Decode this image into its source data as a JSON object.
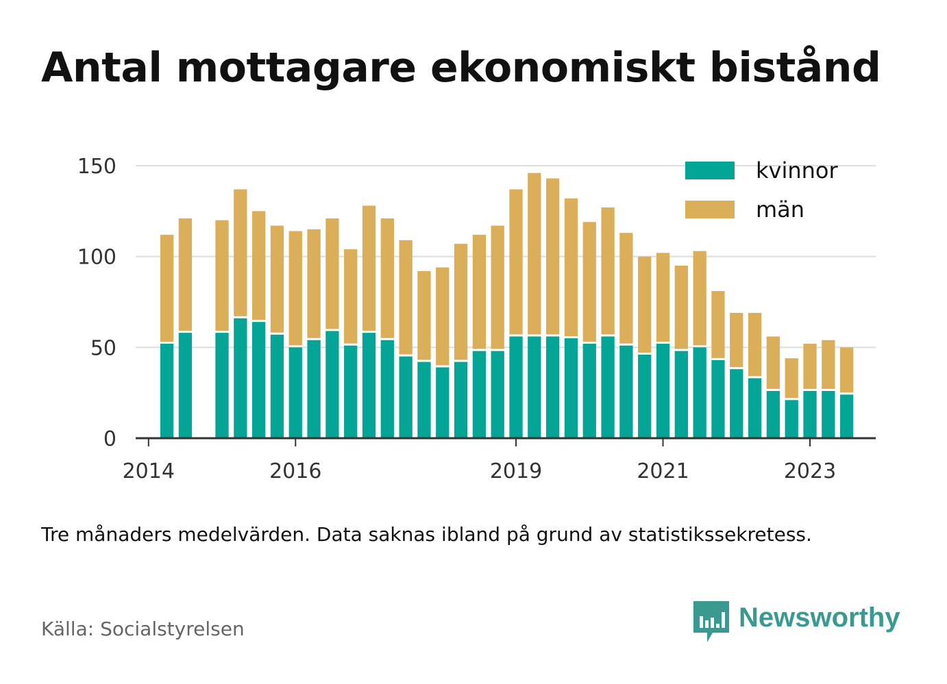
{
  "title": "Antal mottagare ekonomiskt bistånd",
  "note": "Tre månaders medelvärden. Data saknas ibland på grund av statistikssekretess.",
  "source": "Källa: Socialstyrelsen",
  "brand": {
    "name": "Newsworthy",
    "icon": "newsworthy-logo-icon",
    "color": "#3a9a91"
  },
  "chart_data": {
    "type": "bar",
    "stacked": true,
    "ylim": [
      0,
      150
    ],
    "yticks": [
      0,
      50,
      100,
      150
    ],
    "grid": true,
    "legend_position": "top-right",
    "x_unit": "quarter",
    "xticks": [
      "2014",
      "2016",
      "2019",
      "2021",
      "2023"
    ],
    "categories": [
      "2014-Q1",
      "2014-Q2",
      "2014-Q3",
      "2014-Q4",
      "2015-Q1",
      "2015-Q2",
      "2015-Q3",
      "2015-Q4",
      "2016-Q1",
      "2016-Q2",
      "2016-Q3",
      "2016-Q4",
      "2017-Q1",
      "2017-Q2",
      "2017-Q3",
      "2017-Q4",
      "2018-Q1",
      "2018-Q2",
      "2018-Q3",
      "2018-Q4",
      "2019-Q1",
      "2019-Q2",
      "2019-Q3",
      "2019-Q4",
      "2020-Q1",
      "2020-Q2",
      "2020-Q3",
      "2020-Q4",
      "2021-Q1",
      "2021-Q2",
      "2021-Q3",
      "2021-Q4",
      "2022-Q1",
      "2022-Q2",
      "2022-Q3",
      "2022-Q4",
      "2023-Q1",
      "2023-Q2",
      "2023-Q3",
      "2023-Q4"
    ],
    "series": [
      {
        "name": "kvinnor",
        "color": "#04a596",
        "values": [
          null,
          52,
          58,
          null,
          58,
          66,
          64,
          57,
          50,
          54,
          59,
          51,
          58,
          54,
          45,
          42,
          39,
          42,
          48,
          48,
          56,
          56,
          56,
          55,
          52,
          56,
          51,
          46,
          52,
          48,
          50,
          43,
          38,
          33,
          26,
          21,
          26,
          26,
          24,
          null
        ]
      },
      {
        "name": "män",
        "color": "#dbae5a",
        "values": [
          null,
          60,
          63,
          null,
          62,
          71,
          61,
          60,
          64,
          61,
          62,
          53,
          70,
          67,
          64,
          50,
          55,
          65,
          64,
          69,
          81,
          90,
          87,
          77,
          67,
          71,
          62,
          54,
          50,
          47,
          53,
          38,
          31,
          36,
          30,
          23,
          26,
          28,
          26,
          null
        ]
      }
    ]
  }
}
